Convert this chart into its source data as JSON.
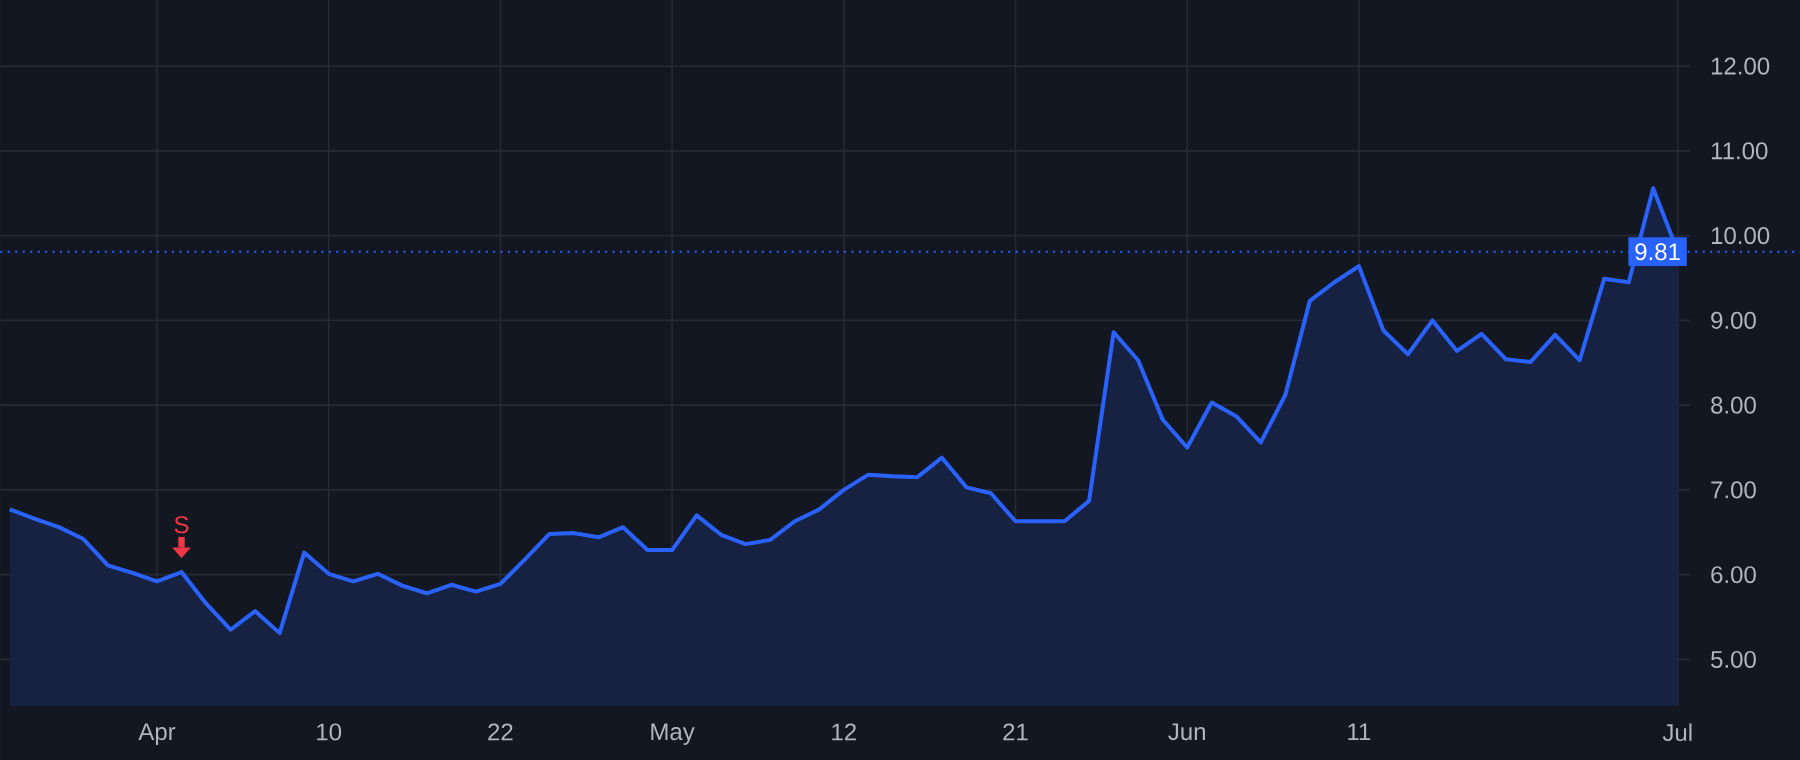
{
  "chart_data": {
    "type": "area",
    "color": "#2962ff",
    "categories": [
      null,
      null,
      null,
      null,
      null,
      null,
      "Apr",
      null,
      null,
      null,
      null,
      null,
      null,
      "10",
      null,
      null,
      null,
      null,
      null,
      null,
      "22",
      null,
      null,
      null,
      null,
      null,
      null,
      "May",
      null,
      null,
      null,
      null,
      null,
      null,
      "12",
      null,
      null,
      null,
      null,
      null,
      null,
      "21",
      null,
      null,
      null,
      null,
      null,
      null,
      "Jun",
      null,
      null,
      null,
      null,
      null,
      null,
      "11",
      null,
      null,
      null,
      null,
      null,
      null,
      null,
      null,
      null,
      null,
      null,
      null,
      "Jul"
    ],
    "values": [
      6.77,
      6.66,
      6.56,
      6.42,
      6.11,
      6.02,
      5.92,
      6.03,
      5.66,
      5.35,
      5.57,
      5.31,
      6.26,
      6.01,
      5.92,
      6.01,
      5.87,
      5.78,
      5.88,
      5.8,
      5.89,
      6.18,
      6.48,
      6.49,
      6.44,
      6.56,
      6.29,
      6.29,
      6.7,
      6.47,
      6.36,
      6.41,
      6.63,
      6.77,
      7.0,
      7.18,
      7.16,
      7.15,
      7.38,
      7.03,
      6.96,
      6.63,
      6.63,
      6.63,
      6.87,
      8.86,
      8.53,
      7.83,
      7.5,
      8.03,
      7.87,
      7.56,
      8.12,
      9.23,
      9.45,
      9.64,
      8.88,
      8.6,
      9.0,
      8.64,
      8.84,
      8.54,
      8.51,
      8.83,
      8.53,
      9.49,
      9.45,
      10.56,
      9.81
    ],
    "ylim": [
      4.45,
      12.78
    ],
    "yticks": [
      {
        "value": 5,
        "label": "5.00"
      },
      {
        "value": 6,
        "label": "6.00"
      },
      {
        "value": 7,
        "label": "7.00"
      },
      {
        "value": 8,
        "label": "8.00"
      },
      {
        "value": 9,
        "label": "9.00"
      },
      {
        "value": 10,
        "label": "10.00"
      },
      {
        "value": 11,
        "label": "11.00"
      },
      {
        "value": 12,
        "label": "12.00"
      }
    ],
    "grid": true,
    "ref_lines": [
      {
        "axis": "y",
        "value": 9.81,
        "label": "9.81",
        "color": "#2962ff",
        "line_style": "dotted"
      }
    ],
    "annotations": [
      {
        "text": "S",
        "y": 6.03
      }
    ]
  }
}
